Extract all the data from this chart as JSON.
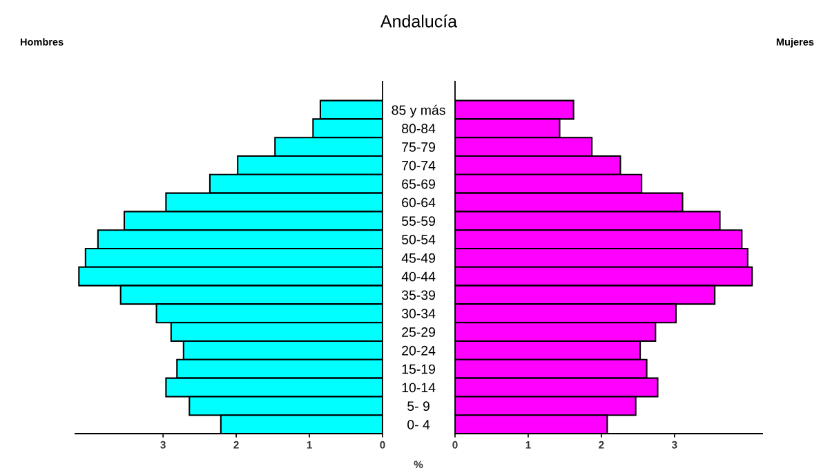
{
  "chart_data": [
    {
      "type": "bar",
      "orientation": "horizontal",
      "title": "Andalucía",
      "categories": [
        "85 y más",
        "80-84",
        "75-79",
        "70-74",
        "65-69",
        "60-64",
        "55-59",
        "50-54",
        "45-49",
        "40-44",
        "35-39",
        "30-34",
        "25-29",
        "20-24",
        "15-19",
        "10-14",
        "5- 9",
        "0- 4"
      ],
      "series": [
        {
          "name": "Hombres",
          "color": "#00ffff",
          "values": [
            0.85,
            0.95,
            1.47,
            1.98,
            2.36,
            2.96,
            3.53,
            3.89,
            4.06,
            4.15,
            3.58,
            3.09,
            2.89,
            2.72,
            2.81,
            2.96,
            2.64,
            2.21
          ]
        }
      ],
      "xlim": [
        4.2,
        0
      ],
      "xticks": [
        3,
        2,
        1,
        0
      ],
      "grid": false,
      "legend": false
    },
    {
      "type": "bar",
      "orientation": "horizontal",
      "xlabel": "%",
      "series": [
        {
          "name": "Mujeres",
          "color": "#ff00ff",
          "values": [
            1.62,
            1.43,
            1.87,
            2.26,
            2.55,
            3.11,
            3.62,
            3.92,
            4.0,
            4.06,
            3.55,
            3.02,
            2.74,
            2.53,
            2.62,
            2.77,
            2.47,
            2.08
          ]
        }
      ],
      "xlim": [
        0,
        4.2
      ],
      "xticks": [
        0,
        1,
        2,
        3
      ],
      "tick_labels": "x",
      "grid": false,
      "legend": false
    }
  ]
}
